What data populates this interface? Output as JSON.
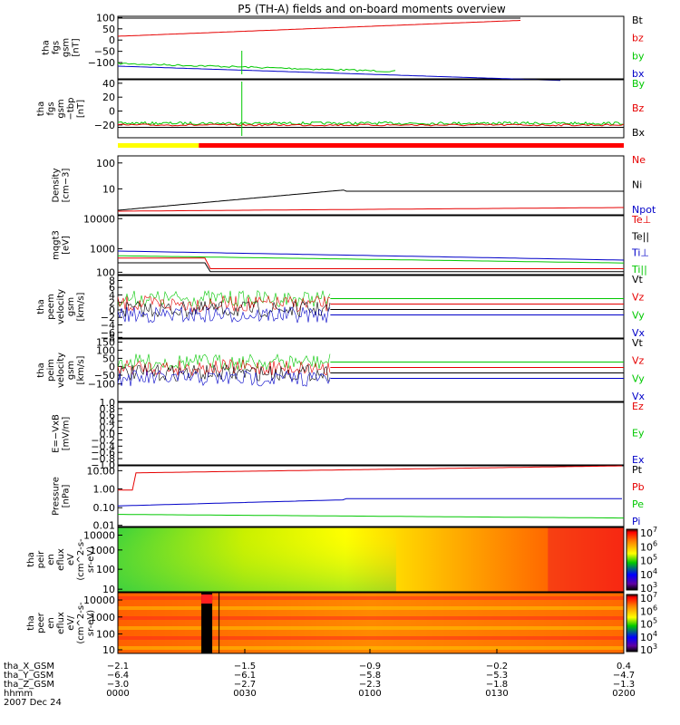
{
  "chart_data": {
    "title": "P5 (TH-A) fields and on-board moments overview",
    "type": "line",
    "panels": [
      {
        "id": "fgs_gsm",
        "ylabel": [
          "tha",
          "fgs",
          "gsm",
          "[nT]"
        ],
        "yticks": [
          "100",
          "50",
          "0",
          "−50",
          "−100"
        ],
        "legend": [
          {
            "label": "Bt",
            "color": "#000000"
          },
          {
            "label": "bz",
            "color": "#e60000"
          },
          {
            "label": "by",
            "color": "#00c800"
          },
          {
            "label": "bx",
            "color": "#0000c8"
          }
        ]
      },
      {
        "id": "fgs_dsl",
        "ylabel": [
          "tha",
          "fgs",
          "gsm",
          "−tbp",
          "[nT]"
        ],
        "yticks": [
          "40",
          "20",
          "0",
          "−20"
        ],
        "legend": [
          {
            "label": "By",
            "color": "#00c800"
          },
          {
            "label": "Bz",
            "color": "#e60000"
          },
          {
            "label": "Bx",
            "color": "#000000"
          }
        ]
      },
      {
        "id": "density",
        "ylabel": [
          "Density",
          "[cm−3]"
        ],
        "yticks": [
          "100",
          "10"
        ],
        "legend": [
          {
            "label": "Ne",
            "color": "#e60000"
          },
          {
            "label": "Ni",
            "color": "#000000"
          },
          {
            "label": "Npot",
            "color": "#0000c8"
          }
        ]
      },
      {
        "id": "temperature",
        "ylabel": [
          "mqgt3",
          "[eV]"
        ],
        "yticks": [
          "10000",
          "1000",
          "100"
        ],
        "legend": [
          {
            "label": "Te⊥",
            "color": "#e60000"
          },
          {
            "label": "Te||",
            "color": "#000000"
          },
          {
            "label": "Ti⊥",
            "color": "#0000c8"
          },
          {
            "label": "Ti||",
            "color": "#00c800"
          }
        ]
      },
      {
        "id": "velocity_e",
        "ylabel": [
          "tha",
          "peem",
          "velocity",
          "gsm",
          "[km/s]"
        ],
        "yticks": [
          "8",
          "6",
          "4",
          "2",
          "0",
          "−2",
          "−4",
          "−6",
          "−8"
        ],
        "legend": [
          {
            "label": "Vt",
            "color": "#000000"
          },
          {
            "label": "Vz",
            "color": "#e60000"
          },
          {
            "label": "Vy",
            "color": "#00c800"
          },
          {
            "label": "Vx",
            "color": "#0000c8"
          }
        ]
      },
      {
        "id": "velocity_i",
        "ylabel": [
          "tha",
          "peim",
          "velocity",
          "gsm",
          "[km/s]"
        ],
        "yticks": [
          "150",
          "100",
          "50",
          "0",
          "−50",
          "−100"
        ],
        "legend": [
          {
            "label": "Vt",
            "color": "#000000"
          },
          {
            "label": "Vz",
            "color": "#e60000"
          },
          {
            "label": "Vy",
            "color": "#00c800"
          },
          {
            "label": "Vx",
            "color": "#0000c8"
          }
        ]
      },
      {
        "id": "efield",
        "ylabel": [
          "E=−VxB",
          "[mV/m]"
        ],
        "yticks": [
          "1.0",
          "0.8",
          "0.6",
          "0.4",
          "0.2",
          "0.0",
          "−0.2",
          "−0.4",
          "−0.6",
          "−0.8",
          "−1.0"
        ],
        "legend": [
          {
            "label": "Ez",
            "color": "#e60000"
          },
          {
            "label": "Ey",
            "color": "#00c800"
          },
          {
            "label": "Ex",
            "color": "#0000c8"
          }
        ]
      },
      {
        "id": "pressure",
        "ylabel": [
          "Pressure",
          "[nPa]"
        ],
        "yticks": [
          "10.00",
          "1.00",
          "0.10",
          "0.01"
        ],
        "legend": [
          {
            "label": "Pt",
            "color": "#000000"
          },
          {
            "label": "Pb",
            "color": "#e60000"
          },
          {
            "label": "Pe",
            "color": "#00c800"
          },
          {
            "label": "Pi",
            "color": "#0000c8"
          }
        ]
      },
      {
        "id": "ion_spec",
        "ylabel": [
          "tha",
          "peir",
          "en",
          "eflux",
          "eV",
          "(cm^2-s-",
          "sr-eV)"
        ],
        "yticks": [
          "10000",
          "1000",
          "100",
          "10"
        ],
        "colorbar": [
          "10^7",
          "10^6",
          "10^5",
          "10^4",
          "10^3"
        ]
      },
      {
        "id": "elec_spec",
        "ylabel": [
          "tha",
          "peer",
          "en",
          "eflux",
          "eV/",
          "(cm^2-s-",
          "sr-eV)"
        ],
        "yticks": [
          "10000",
          "1000",
          "100",
          "10"
        ],
        "colorbar": [
          "10^7",
          "10^6",
          "10^5",
          "10^4",
          "10^3"
        ]
      }
    ],
    "x_axis": {
      "rows": [
        {
          "label": "tha_X_GSM",
          "values": [
            "−2.1",
            "−1.5",
            "−0.9",
            "−0.2",
            "0.4"
          ]
        },
        {
          "label": "tha_Y_GSM",
          "values": [
            "−6.4",
            "−6.1",
            "−5.8",
            "−5.3",
            "−4.7"
          ]
        },
        {
          "label": "tha_Z_GSM",
          "values": [
            "−3.0",
            "−2.7",
            "−2.3",
            "−1.8",
            "−1.3"
          ]
        },
        {
          "label": "hhmm",
          "values": [
            "0000",
            "0030",
            "0100",
            "0130",
            "0200"
          ]
        }
      ],
      "date": "2007 Dec 24"
    }
  }
}
